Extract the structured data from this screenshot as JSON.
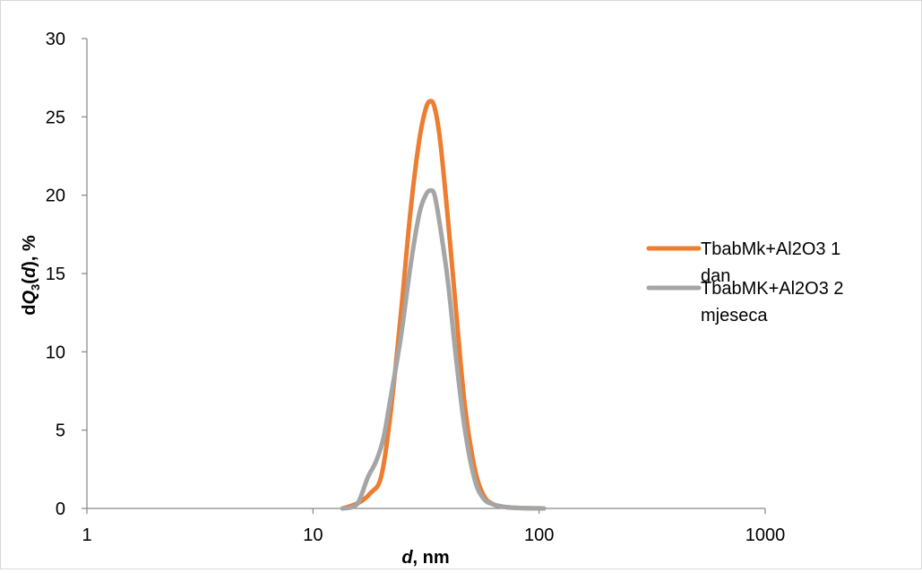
{
  "chart_data": {
    "type": "line",
    "xlabel": {
      "main": "d",
      "suffix": ", nm"
    },
    "ylabel": {
      "prefix": "d",
      "var": "Q",
      "sub": "3",
      "open": "(",
      "arg": "d",
      "close": "), %"
    },
    "x_scale": "log",
    "xlim": [
      1,
      1000
    ],
    "ylim": [
      0,
      30
    ],
    "x_ticks": [
      1,
      10,
      100,
      1000
    ],
    "x_tick_labels": [
      "1",
      "10",
      "100",
      "1000"
    ],
    "y_ticks": [
      0,
      5,
      10,
      15,
      20,
      25,
      30
    ],
    "y_tick_labels": [
      "0",
      "5",
      "10",
      "15",
      "20",
      "25",
      "30"
    ],
    "grid": false,
    "legend_position": "right",
    "series": [
      {
        "name": "TbabMk+Al2O3 1 dan",
        "color": "#ED7D31",
        "x": [
          13.5,
          15.0,
          16.5,
          18.0,
          20.0,
          22.0,
          24.5,
          27.0,
          29.5,
          31.5,
          33.0,
          34.5,
          36.5,
          39.5,
          43.0,
          47.0,
          52.0,
          57.0,
          63.0,
          70.0,
          77.0,
          85.0,
          95.0,
          105.0
        ],
        "y": [
          0.0,
          0.2,
          0.5,
          1.0,
          2.0,
          6.0,
          12.5,
          19.0,
          23.5,
          25.5,
          26.0,
          25.6,
          23.5,
          18.5,
          12.5,
          6.5,
          2.5,
          0.8,
          0.25,
          0.1,
          0.04,
          0.02,
          0.01,
          0.0
        ]
      },
      {
        "name": "TbabMK+Al2O3 2 mjeseca",
        "color": "#A5A5A5",
        "x": [
          13.5,
          15.0,
          16.0,
          17.5,
          19.0,
          20.5,
          22.0,
          24.5,
          27.0,
          29.5,
          31.5,
          33.0,
          34.5,
          36.5,
          39.5,
          43.0,
          47.0,
          52.0,
          57.0,
          63.0,
          70.0,
          77.0,
          85.0,
          95.0,
          105.0
        ],
        "y": [
          0.0,
          0.1,
          0.5,
          2.0,
          3.0,
          4.5,
          7.0,
          11.0,
          15.5,
          18.8,
          20.0,
          20.3,
          20.0,
          18.0,
          14.5,
          9.5,
          5.0,
          1.8,
          0.6,
          0.25,
          0.1,
          0.05,
          0.02,
          0.01,
          0.0
        ]
      }
    ]
  }
}
